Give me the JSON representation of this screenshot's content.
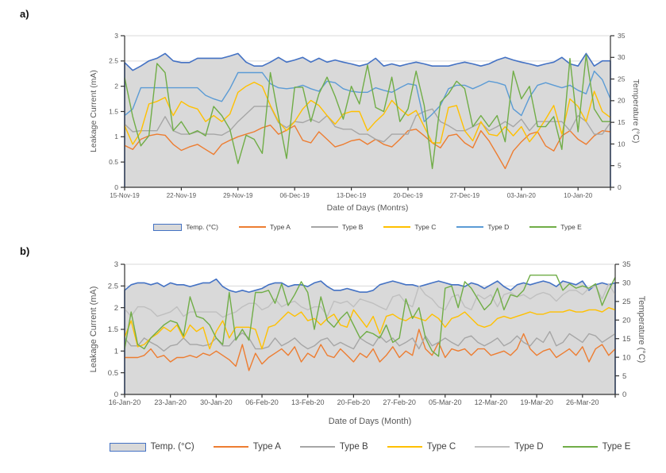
{
  "panels": {
    "a": {
      "label": "a)"
    },
    "b": {
      "label": "b)"
    }
  },
  "colors": {
    "temp_border": "#4472C4",
    "temp_fill": "#D9D9D9",
    "axis_line": "#333333",
    "tick_text": "#595959",
    "gridline": "#D9D9D9",
    "type_a": "#ED7D31",
    "type_b": "#A6A6A6",
    "type_c": "#FFC000",
    "type_d_blue": "#5B9BD5",
    "type_d_gray": "#BFBFBF",
    "type_e": "#70AD47"
  },
  "chart_data": [
    {
      "type": "area",
      "panel": "a",
      "xlabel": "Date of Days (Montrs)",
      "ylabel_left": "Leakage Current (mA)",
      "ylabel_right": "Temperature (°C)",
      "ylim_left": [
        0,
        3
      ],
      "ylim_right": [
        0,
        35
      ],
      "y_ticks_left": [
        "0",
        "0.5",
        "1",
        "1.5",
        "2",
        "2.5",
        "3"
      ],
      "y_ticks_right": [
        "0",
        "5",
        "10",
        "15",
        "20",
        "25",
        "30",
        "35"
      ],
      "grid": "horizontal, every 0.5 mA, hidden behind area fill",
      "legend_position": "bottom",
      "x_tick_labels": [
        "15-Nov-19",
        "22-Nov-19",
        "29-Nov-19",
        "06-Dec-19",
        "13-Dec-19",
        "20-Dec-19",
        "27-Dec-19",
        "03-Jan-20",
        "10-Jan-20"
      ],
      "x_tick_step_days": 7,
      "n_points": 61,
      "temp_series": {
        "name": "Temp. (°C)",
        "axis": "right",
        "style": "area",
        "fill": "#D9D9D9",
        "border": "#4472C4",
        "values": [
          28.8,
          27,
          28,
          29.2,
          29.8,
          30.9,
          29.2,
          28.8,
          28.8,
          29.8,
          29.8,
          29.8,
          29.8,
          30.3,
          30.9,
          28.9,
          28,
          28,
          28.9,
          30,
          28.9,
          29.4,
          30,
          28.9,
          29.8,
          28.9,
          29.4,
          28.9,
          28.5,
          28,
          28.5,
          29.8,
          28,
          28.5,
          28,
          28.5,
          28.9,
          28.5,
          28,
          28,
          28,
          28.5,
          28.9,
          28.5,
          28,
          28.5,
          29.4,
          30,
          29.4,
          28.9,
          28.5,
          28,
          28.5,
          28.9,
          30,
          28.5,
          28,
          30.9,
          28,
          29.2,
          29.2
        ]
      },
      "series": [
        {
          "name": "Type A",
          "color": "#ED7D31",
          "axis": "left",
          "values": [
            0.83,
            0.75,
            0.95,
            1.02,
            1.05,
            1.03,
            0.85,
            0.73,
            0.8,
            0.85,
            0.75,
            0.65,
            0.85,
            0.93,
            1.0,
            1.05,
            1.1,
            1.18,
            1.23,
            1.05,
            1.13,
            1.22,
            0.93,
            0.88,
            1.1,
            0.95,
            0.8,
            0.85,
            0.92,
            0.95,
            0.85,
            0.95,
            0.85,
            0.8,
            0.95,
            1.12,
            1.15,
            1.02,
            0.88,
            0.78,
            1.02,
            1.05,
            0.88,
            0.78,
            1.12,
            0.92,
            0.65,
            0.37,
            0.72,
            0.9,
            1.05,
            1.1,
            0.82,
            0.72,
            1.02,
            1.12,
            0.95,
            0.85,
            1.02,
            1.12,
            1.1
          ]
        },
        {
          "name": "Type B",
          "color": "#A6A6A6",
          "axis": "left",
          "values": [
            1.25,
            1.1,
            1.12,
            1.12,
            1.12,
            1.4,
            1.12,
            1.05,
            1.05,
            1.1,
            1.05,
            1.05,
            1.03,
            1.12,
            1.3,
            1.45,
            1.6,
            1.6,
            1.6,
            1.28,
            1.18,
            1.3,
            1.28,
            1.35,
            1.28,
            1.42,
            1.2,
            1.15,
            1.15,
            1.05,
            1.05,
            0.95,
            0.9,
            1.05,
            1.05,
            1.05,
            1.42,
            1.5,
            1.55,
            1.3,
            1.22,
            1.12,
            1.12,
            1.2,
            1.28,
            1.12,
            1.2,
            1.3,
            1.2,
            1.35,
            1.12,
            1.3,
            1.3,
            1.3,
            1.3,
            1.12,
            1.42,
            1.3,
            1.05,
            1.05,
            1.28
          ]
        },
        {
          "name": "Type C",
          "color": "#FFC000",
          "axis": "left",
          "values": [
            1.22,
            0.85,
            1.1,
            1.65,
            1.7,
            1.78,
            1.42,
            1.7,
            1.6,
            1.55,
            1.3,
            1.42,
            1.3,
            1.45,
            1.88,
            2.0,
            2.08,
            2.0,
            1.62,
            1.3,
            1.12,
            1.3,
            1.55,
            1.72,
            1.62,
            1.42,
            1.25,
            1.45,
            1.5,
            1.5,
            1.12,
            1.3,
            1.45,
            1.72,
            1.55,
            1.42,
            1.52,
            1.2,
            0.88,
            0.88,
            1.58,
            1.62,
            1.12,
            0.92,
            1.3,
            1.05,
            1.02,
            1.2,
            1.02,
            1.2,
            0.9,
            1.1,
            1.35,
            1.62,
            1.05,
            1.75,
            1.6,
            1.3,
            1.9,
            1.5,
            1.38
          ]
        },
        {
          "name": "Type D",
          "color": "#5B9BD5",
          "axis": "left",
          "values": [
            1.42,
            1.55,
            1.97,
            1.97,
            1.97,
            1.97,
            1.97,
            1.97,
            1.97,
            1.97,
            1.82,
            1.75,
            1.7,
            1.95,
            2.27,
            2.27,
            2.27,
            2.27,
            2.05,
            1.97,
            1.95,
            1.97,
            2.02,
            1.95,
            1.9,
            2.1,
            2.07,
            1.95,
            1.9,
            1.88,
            1.88,
            1.97,
            1.92,
            1.88,
            1.97,
            2.05,
            2.02,
            1.3,
            1.45,
            1.62,
            1.95,
            2.02,
            2.02,
            1.95,
            2.02,
            2.1,
            2.07,
            2.02,
            1.55,
            1.42,
            1.78,
            2.02,
            2.07,
            2.02,
            1.97,
            2.02,
            1.92,
            1.85,
            2.3,
            2.13,
            1.75
          ]
        },
        {
          "name": "Type E",
          "color": "#70AD47",
          "axis": "left",
          "values": [
            2.17,
            1.4,
            0.82,
            1.02,
            2.45,
            2.27,
            1.12,
            1.3,
            1.05,
            1.12,
            1.02,
            1.6,
            1.42,
            1.15,
            0.47,
            1.03,
            0.95,
            0.67,
            2.27,
            1.4,
            0.57,
            1.98,
            1.98,
            1.3,
            1.85,
            2.18,
            1.8,
            1.35,
            2.0,
            1.65,
            2.42,
            1.58,
            1.5,
            2.18,
            1.3,
            1.55,
            2.3,
            1.62,
            0.37,
            1.68,
            1.85,
            2.1,
            1.95,
            1.2,
            1.42,
            1.2,
            1.42,
            0.9,
            2.3,
            1.75,
            2.0,
            1.2,
            1.2,
            1.4,
            0.75,
            2.55,
            1.1,
            2.62,
            1.55,
            1.3,
            1.3
          ]
        }
      ]
    },
    {
      "type": "area",
      "panel": "b",
      "xlabel": "Date of Days (Month)",
      "ylabel_left": "Leakage Current (mA)",
      "ylabel_right": "Temperature (°C)",
      "ylim_left": [
        0,
        3
      ],
      "ylim_right": [
        0,
        35
      ],
      "y_ticks_left": [
        "0",
        "0.5",
        "1",
        "1.5",
        "2",
        "2.5",
        "3"
      ],
      "y_ticks_right": [
        "0",
        "5",
        "10",
        "15",
        "20",
        "25",
        "30",
        "35"
      ],
      "grid": "horizontal, every 0.5 mA, hidden behind area fill",
      "legend_position": "bottom",
      "x_tick_labels": [
        "16-Jan-20",
        "23-Jan-20",
        "30-Jan-20",
        "06-Feb-20",
        "13-Feb-20",
        "20-Feb-20",
        "27-Feb-20",
        "05-Mar-20",
        "12-Mar-20",
        "19-Mar-20",
        "26-Mar-20"
      ],
      "x_tick_step_days": 7,
      "n_points": 76,
      "temp_series": {
        "name": "Temp. (°C)",
        "axis": "right",
        "style": "area",
        "fill": "#D9D9D9",
        "border": "#4472C4",
        "values": [
          28,
          29.5,
          30,
          30,
          29.5,
          30,
          29,
          30,
          29.5,
          29.5,
          29,
          29.5,
          30,
          30,
          31,
          29,
          28,
          27.5,
          28,
          27.5,
          28,
          28.5,
          29.5,
          30,
          30,
          29,
          29.5,
          29.5,
          29,
          30,
          30.5,
          29,
          28,
          28,
          28.5,
          28,
          27.5,
          27.5,
          28,
          29.5,
          30,
          30.5,
          30,
          29.5,
          29.5,
          29,
          29.5,
          30,
          30.5,
          30,
          29.5,
          29.5,
          29,
          30,
          29.5,
          28.5,
          29.5,
          30.5,
          29,
          28,
          29.5,
          30,
          29.5,
          30,
          30.5,
          30,
          29,
          30.5,
          30,
          29.5,
          30.5,
          28,
          29.5,
          30,
          29.5,
          30
        ]
      },
      "series": [
        {
          "name": "Type A",
          "color": "#ED7D31",
          "axis": "left",
          "values": [
            0.85,
            0.85,
            0.85,
            0.9,
            1.05,
            0.85,
            0.9,
            0.75,
            0.85,
            0.85,
            0.9,
            0.85,
            0.95,
            0.9,
            1.0,
            0.9,
            0.8,
            0.65,
            1.15,
            0.55,
            0.95,
            0.7,
            0.85,
            0.95,
            1.05,
            0.9,
            1.1,
            0.75,
            0.95,
            0.85,
            1.15,
            0.9,
            0.85,
            1.05,
            0.9,
            0.75,
            0.95,
            0.85,
            1.05,
            0.75,
            0.9,
            1.1,
            0.85,
            1.0,
            0.9,
            1.5,
            1.05,
            0.9,
            1.2,
            0.85,
            1.05,
            1.0,
            1.05,
            0.9,
            1.05,
            1.05,
            0.9,
            0.95,
            1.0,
            0.9,
            1.05,
            1.4,
            1.05,
            0.9,
            1.0,
            1.05,
            0.85,
            0.95,
            1.05,
            0.9,
            1.1,
            0.75,
            1.05,
            1.15,
            0.9,
            1.05
          ]
        },
        {
          "name": "Type B",
          "color": "#A6A6A6",
          "axis": "left",
          "values": [
            1.3,
            1.12,
            1.12,
            1.3,
            1.2,
            1.12,
            1.0,
            1.12,
            1.15,
            1.3,
            1.15,
            1.15,
            1.12,
            1.15,
            1.3,
            1.12,
            1.12,
            1.3,
            1.42,
            1.3,
            1.05,
            1.05,
            1.1,
            1.3,
            1.12,
            1.2,
            1.3,
            1.15,
            1.05,
            1.12,
            1.25,
            1.3,
            1.12,
            1.2,
            1.12,
            1.05,
            1.3,
            1.2,
            1.12,
            1.35,
            1.2,
            1.3,
            1.12,
            1.2,
            1.3,
            1.05,
            1.35,
            1.12,
            1.2,
            1.3,
            1.2,
            1.12,
            1.3,
            1.35,
            1.2,
            1.12,
            1.2,
            1.3,
            1.12,
            1.2,
            1.35,
            1.2,
            1.12,
            1.3,
            1.2,
            1.45,
            1.12,
            1.2,
            1.4,
            1.3,
            1.2,
            1.4,
            1.35,
            1.2,
            1.3,
            1.4
          ]
        },
        {
          "name": "Type C",
          "color": "#FFC000",
          "axis": "left",
          "values": [
            1.32,
            1.7,
            1.1,
            1.15,
            1.3,
            1.4,
            1.55,
            1.45,
            1.6,
            1.3,
            1.6,
            1.45,
            1.55,
            1.05,
            1.45,
            1.7,
            1.3,
            1.55,
            1.55,
            1.55,
            1.5,
            1.05,
            1.55,
            1.6,
            1.75,
            1.9,
            1.8,
            1.9,
            1.7,
            1.75,
            1.6,
            1.75,
            1.85,
            1.6,
            1.55,
            1.95,
            1.75,
            1.55,
            1.8,
            1.4,
            1.8,
            1.85,
            1.75,
            1.7,
            1.8,
            1.75,
            1.7,
            1.85,
            1.75,
            1.55,
            1.75,
            1.8,
            1.9,
            1.75,
            1.6,
            1.55,
            1.6,
            1.75,
            1.8,
            1.75,
            1.8,
            1.85,
            1.9,
            1.85,
            1.85,
            1.9,
            1.9,
            1.9,
            1.95,
            1.9,
            1.9,
            1.95,
            1.95,
            1.9,
            2.0,
            1.95
          ]
        },
        {
          "name": "Type D",
          "color": "#BFBFBF",
          "axis": "left",
          "values": [
            1.97,
            1.8,
            2.02,
            2.02,
            1.95,
            1.8,
            1.85,
            1.9,
            2.02,
            1.8,
            1.9,
            1.9,
            1.9,
            1.9,
            1.9,
            1.78,
            1.85,
            1.9,
            2.02,
            2.1,
            2.1,
            1.95,
            2.02,
            2.2,
            2.02,
            2.1,
            2.15,
            2.02,
            1.95,
            2.02,
            2.02,
            1.8,
            2.15,
            2.1,
            2.15,
            2.02,
            2.2,
            2.15,
            2.1,
            2.02,
            1.95,
            2.25,
            2.3,
            2.1,
            2.02,
            2.5,
            2.3,
            2.2,
            2.02,
            1.95,
            2.25,
            2.3,
            2.02,
            1.95,
            2.3,
            2.2,
            2.3,
            2.02,
            2.3,
            2.35,
            2.25,
            2.3,
            2.2,
            2.3,
            2.35,
            2.3,
            2.15,
            2.3,
            2.4,
            2.4,
            2.3,
            2.45,
            2.5,
            2.2,
            2.55,
            2.3
          ]
        },
        {
          "name": "Type E",
          "color": "#70AD47",
          "axis": "left",
          "values": [
            1.05,
            1.9,
            1.15,
            1.05,
            1.3,
            1.45,
            1.6,
            1.7,
            1.65,
            1.35,
            2.25,
            1.8,
            1.75,
            1.6,
            1.3,
            1.15,
            2.35,
            1.25,
            1.5,
            1.25,
            2.35,
            2.35,
            2.4,
            2.1,
            2.55,
            2.05,
            2.3,
            2.6,
            2.35,
            1.5,
            2.25,
            1.7,
            1.55,
            1.75,
            1.9,
            1.6,
            1.3,
            1.45,
            1.4,
            1.3,
            1.6,
            1.2,
            1.3,
            2.2,
            1.75,
            2.0,
            1.3,
            1.0,
            0.88,
            2.45,
            2.5,
            2.0,
            2.6,
            2.45,
            2.2,
            1.95,
            2.1,
            2.45,
            1.95,
            2.3,
            2.25,
            2.4,
            2.75,
            2.75,
            2.75,
            2.75,
            2.75,
            2.4,
            2.55,
            2.45,
            2.5,
            2.45,
            2.55,
            2.05,
            2.4,
            2.7
          ]
        }
      ]
    }
  ]
}
